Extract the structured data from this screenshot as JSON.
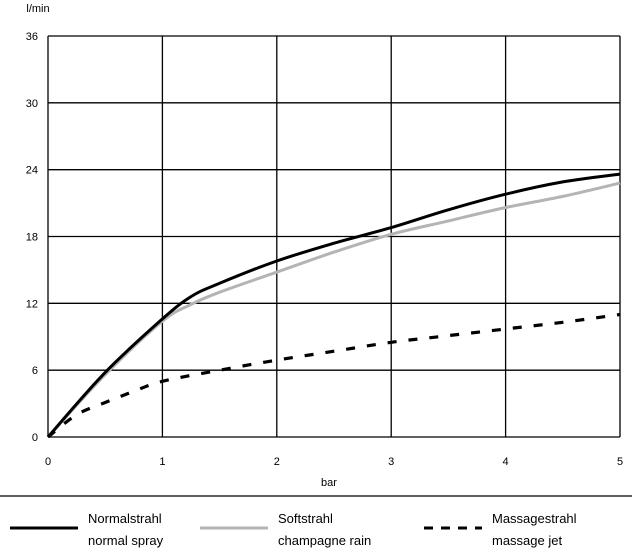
{
  "chart_data": {
    "type": "line",
    "ylabel": "l/min",
    "xlabel": "bar",
    "xlim": [
      0,
      5
    ],
    "ylim": [
      0,
      36
    ],
    "xticks": [
      "0",
      "1",
      "2",
      "3",
      "4",
      "5"
    ],
    "yticks": [
      "0",
      "6",
      "12",
      "18",
      "24",
      "30",
      "36"
    ],
    "grid": true,
    "legend_position": "bottom",
    "series": [
      {
        "name_lines": [
          "Normalstrahl",
          "normal spray"
        ],
        "color": "#000000",
        "style": "solid",
        "x": [
          0,
          0.5,
          1.0,
          1.25,
          1.5,
          2.0,
          2.5,
          3.0,
          3.5,
          4.0,
          4.5,
          5.0
        ],
        "y": [
          0,
          5.8,
          10.6,
          12.6,
          13.8,
          15.8,
          17.4,
          18.8,
          20.4,
          21.8,
          22.9,
          23.6
        ]
      },
      {
        "name_lines": [
          "Softstrahl",
          "champagne rain"
        ],
        "color": "#b4b4b4",
        "style": "solid",
        "x": [
          0,
          0.5,
          1.0,
          1.25,
          1.5,
          2.0,
          2.5,
          3.0,
          3.5,
          4.0,
          4.5,
          5.0
        ],
        "y": [
          0,
          5.6,
          10.4,
          11.9,
          13.0,
          14.8,
          16.6,
          18.2,
          19.4,
          20.6,
          21.6,
          22.8
        ]
      },
      {
        "name_lines": [
          "Massagestrahl",
          "massage jet"
        ],
        "color": "#000000",
        "style": "dashed",
        "x": [
          0,
          0.25,
          0.5,
          0.75,
          1.0,
          1.5,
          2.0,
          2.5,
          3.0,
          3.5,
          4.0,
          4.5,
          5.0
        ],
        "y": [
          0,
          2.0,
          3.1,
          4.1,
          5.0,
          6.0,
          6.9,
          7.7,
          8.5,
          9.1,
          9.7,
          10.3,
          11.0
        ]
      }
    ]
  }
}
